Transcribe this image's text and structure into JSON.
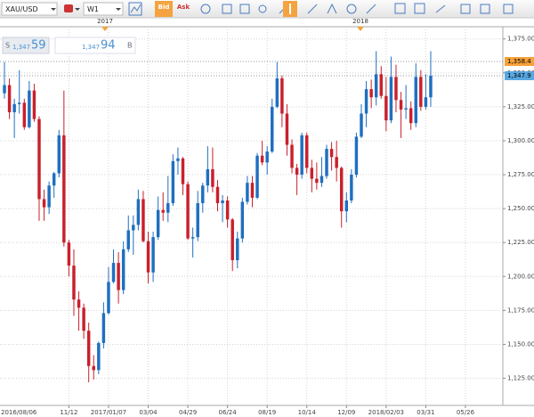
{
  "toolbar": {
    "symbol": "XAU/USD",
    "timeframe": "W1",
    "bid": "Bid",
    "ask": "Ask"
  },
  "year_labels": [
    "2017",
    "2018"
  ],
  "quote": {
    "sell": {
      "side": "S",
      "figure": "1,347",
      "pips": "59"
    },
    "buy": {
      "figure": "1,347",
      "pips": "94",
      "side": "B"
    }
  },
  "chart_data": {
    "type": "candlestick",
    "up_color": "#1f6fc0",
    "down_color": "#c9202b",
    "grid": true,
    "categories": [
      "2016/08/06",
      null,
      null,
      null,
      null,
      null,
      null,
      null,
      null,
      null,
      null,
      null,
      null,
      null,
      "11/12",
      null,
      null,
      null,
      null,
      null,
      null,
      null,
      "2017/01/07",
      null,
      null,
      null,
      null,
      null,
      null,
      null,
      "03/04",
      null,
      null,
      null,
      null,
      null,
      null,
      null,
      "04/29",
      null,
      null,
      null,
      null,
      null,
      null,
      null,
      "06/24",
      null,
      null,
      null,
      null,
      null,
      null,
      null,
      "08/19",
      null,
      null,
      null,
      null,
      null,
      null,
      null,
      "10/14",
      null,
      null,
      null,
      null,
      null,
      null,
      null,
      "12/09",
      null,
      null,
      null,
      null,
      null,
      null,
      null,
      "2018/02/03",
      null,
      null,
      null,
      null,
      null,
      null,
      null,
      "03/31",
      null,
      null,
      null,
      null,
      null,
      null,
      null,
      "05/26",
      null,
      null,
      null,
      null,
      null,
      null
    ],
    "open": [
      null,
      1335,
      1341,
      1321,
      1327,
      1328,
      1310,
      1337,
      1316,
      1257,
      1251,
      1267,
      1276,
      1304,
      1225,
      1208,
      1183,
      1177,
      1160,
      1134,
      1131,
      1151,
      1173,
      1196,
      1210,
      1190,
      1220,
      1234,
      1238,
      1257,
      1226,
      1203,
      1229,
      1249,
      1247,
      1254,
      1285,
      1287,
      1268,
      1228,
      1229,
      1254,
      1267,
      1279,
      1266,
      1254,
      1256,
      1242,
      1212,
      1228,
      1255,
      1269,
      1258,
      1289,
      1284,
      1292,
      1325,
      1346,
      1320,
      1297,
      1280,
      1275,
      1304,
      1280,
      1272,
      1269,
      1274,
      1294,
      1288,
      1280,
      1248,
      1256,
      1275,
      1303,
      1320,
      1338,
      1332,
      1349,
      1333,
      1315,
      1347,
      1330,
      1323,
      1324,
      1313,
      1347,
      1325,
      1332,
      null,
      null,
      null,
      null,
      null,
      null,
      null,
      null,
      null,
      null,
      null,
      null,
      null
    ],
    "high": [
      null,
      1358,
      1346,
      1331,
      1352,
      1331,
      1344,
      1342,
      1318,
      1264,
      1270,
      1277,
      1308,
      1337,
      1227,
      1220,
      1189,
      1180,
      1166,
      1142,
      1152,
      1181,
      1207,
      1220,
      1218,
      1226,
      1245,
      1245,
      1264,
      1263,
      1233,
      1233,
      1259,
      1262,
      1274,
      1290,
      1295,
      1288,
      1270,
      1236,
      1263,
      1269,
      1296,
      1295,
      1271,
      1260,
      1259,
      1243,
      1233,
      1258,
      1274,
      1274,
      1291,
      1300,
      1296,
      1331,
      1358,
      1348,
      1327,
      1301,
      1283,
      1306,
      1306,
      1286,
      1284,
      1288,
      1297,
      1299,
      1300,
      1281,
      1262,
      1279,
      1306,
      1327,
      1344,
      1345,
      1366,
      1355,
      1347,
      1362,
      1356,
      1336,
      1341,
      1329,
      1357,
      1352,
      1349,
      1366,
      null,
      null,
      null,
      null,
      null,
      null,
      null,
      null,
      null,
      null,
      null,
      null,
      null
    ],
    "low": [
      null,
      1331,
      1316,
      1302,
      1320,
      1308,
      1309,
      1314,
      1241,
      1241,
      1246,
      1258,
      1273,
      1222,
      1200,
      1171,
      1160,
      1154,
      1122,
      1124,
      1128,
      1147,
      1172,
      1195,
      1180,
      1187,
      1218,
      1216,
      1234,
      1225,
      1195,
      1196,
      1227,
      1241,
      1240,
      1252,
      1275,
      1260,
      1227,
      1214,
      1226,
      1247,
      1262,
      1262,
      1248,
      1240,
      1236,
      1204,
      1206,
      1225,
      1253,
      1251,
      1257,
      1282,
      1275,
      1291,
      1324,
      1310,
      1289,
      1276,
      1260,
      1272,
      1276,
      1262,
      1264,
      1266,
      1272,
      1278,
      1270,
      1236,
      1240,
      1254,
      1273,
      1302,
      1310,
      1324,
      1326,
      1331,
      1307,
      1313,
      1321,
      1302,
      1316,
      1308,
      1310,
      1322,
      1323,
      1325,
      null,
      null,
      null,
      null,
      null,
      null,
      null,
      null,
      null,
      null,
      null,
      null,
      null
    ],
    "close": [
      null,
      1341,
      1321,
      1327,
      1328,
      1310,
      1337,
      1316,
      1257,
      1251,
      1267,
      1276,
      1304,
      1225,
      1208,
      1183,
      1177,
      1160,
      1134,
      1131,
      1151,
      1173,
      1196,
      1210,
      1190,
      1220,
      1234,
      1238,
      1257,
      1226,
      1203,
      1229,
      1249,
      1247,
      1254,
      1285,
      1287,
      1268,
      1228,
      1229,
      1254,
      1267,
      1279,
      1266,
      1254,
      1256,
      1242,
      1212,
      1228,
      1255,
      1269,
      1258,
      1289,
      1284,
      1292,
      1325,
      1346,
      1320,
      1297,
      1280,
      1275,
      1304,
      1280,
      1272,
      1269,
      1274,
      1294,
      1288,
      1280,
      1248,
      1256,
      1275,
      1303,
      1320,
      1338,
      1332,
      1349,
      1333,
      1315,
      1347,
      1330,
      1323,
      1324,
      1313,
      1347,
      1325,
      1332,
      1347.9,
      null,
      null,
      null,
      null,
      null,
      null,
      null,
      null,
      null,
      null,
      null,
      null,
      null
    ],
    "ylim": [
      1105,
      1384
    ],
    "yticks": [
      {
        "value": 1375,
        "label": "1,375.00"
      },
      {
        "value": 1350,
        "label": "1,350.00"
      },
      {
        "value": 1325,
        "label": "1,325.00"
      },
      {
        "value": 1300,
        "label": "1,300.00"
      },
      {
        "value": 1275,
        "label": "1,275.00"
      },
      {
        "value": 1250,
        "label": "1,250.00"
      },
      {
        "value": 1225,
        "label": "1,225.00"
      },
      {
        "value": 1200,
        "label": "1,200.00"
      },
      {
        "value": 1175,
        "label": "1,175.00"
      },
      {
        "value": 1150,
        "label": "1,150.00"
      },
      {
        "value": 1125,
        "label": "1,125.00"
      }
    ],
    "price_markers": [
      {
        "value": 1358.4,
        "label": "1,358.4",
        "color": "#f6a23a"
      },
      {
        "value": 1347.9,
        "label": "1,347.9",
        "color": "#58a8e0"
      }
    ]
  }
}
